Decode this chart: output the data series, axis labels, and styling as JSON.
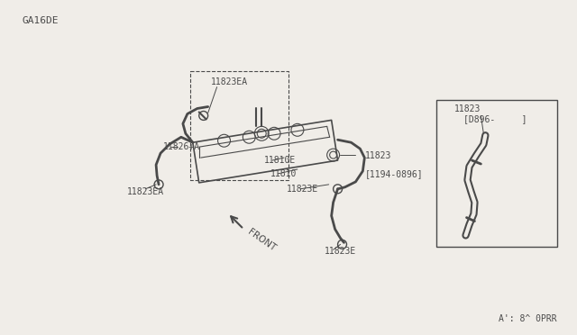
{
  "bg_color": "#f0ede8",
  "line_color": "#4a4a4a",
  "engine_code": "GA16DE",
  "part_code": "A': 8^ 0PRR",
  "figsize": [
    6.4,
    3.72
  ],
  "dpi": 100,
  "labels": {
    "11823EA_top": "11823EA",
    "11826A": "11826+A",
    "11823EA_left": "11823EA",
    "11810E": "11810E",
    "11810": "11810",
    "11823_right_1": "11823",
    "11823_right_2": "[1194-0896]",
    "11823E_mid": "11823E",
    "11823E_bot": "11823E",
    "front": "FRONT",
    "inset_11823_1": "11823",
    "inset_11823_2": "[D896-     ]"
  }
}
